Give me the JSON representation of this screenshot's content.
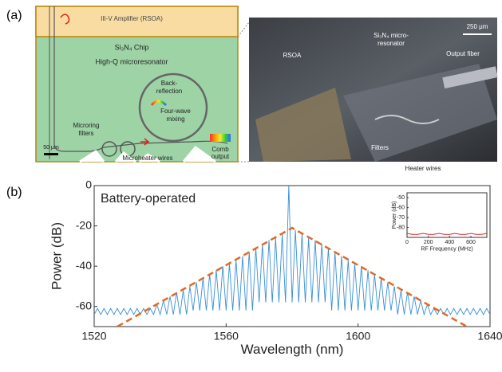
{
  "figure": {
    "panel_a": {
      "label": "(a)",
      "schematic": {
        "amplifier": "III-V Amplifier (RSOA)",
        "chip": "Si₃N₄ Chip",
        "resonator": "High-Q microresonator",
        "back_reflection": [
          "Back-",
          "reflection"
        ],
        "four_wave_mixing": [
          "Four-wave",
          "mixing"
        ],
        "microring_filters": [
          "Microring",
          "filters"
        ],
        "comb_output": [
          "Comb",
          "output"
        ],
        "scale_bar": "50 μm",
        "microheater": "Microheater wires"
      },
      "photo": {
        "rsoa": "RSOA",
        "microresonator": [
          "Si₃N₄ micro-",
          "resonator"
        ],
        "output_fiber": "Output fiber",
        "filters": "Filters",
        "heater_wires": "Heater wires",
        "scale_bar": "250 μm"
      }
    },
    "panel_b": {
      "label": "(b)"
    }
  },
  "chart_data": [
    {
      "type": "line",
      "x_label": "Wavelength (nm)",
      "y_label": "Power (dB)",
      "annotation": "Battery-operated",
      "xlim": [
        1520,
        1640
      ],
      "xticks": [
        1520,
        1560,
        1600,
        1640
      ],
      "ylim": [
        -70,
        0
      ],
      "yticks": [
        0,
        -20,
        -40,
        -60
      ],
      "series": [
        {
          "color": "#3a8fd6",
          "dashed": false,
          "x": [
            1520,
            1521,
            1522,
            1523,
            1524,
            1525,
            1526,
            1527,
            1528,
            1529,
            1530,
            1531,
            1532,
            1533,
            1534,
            1535,
            1536,
            1537,
            1538,
            1539,
            1540,
            1541,
            1542,
            1543,
            1544,
            1545,
            1546,
            1547,
            1548,
            1549,
            1550,
            1551,
            1552,
            1553,
            1554,
            1555,
            1556,
            1557,
            1558,
            1559,
            1560,
            1561,
            1562,
            1563,
            1564,
            1565,
            1566,
            1567,
            1568,
            1569,
            1570,
            1571,
            1572,
            1573,
            1574,
            1575,
            1576,
            1577,
            1578,
            1579,
            1580,
            1581,
            1582,
            1583,
            1584,
            1585,
            1586,
            1587,
            1588,
            1589,
            1590,
            1591,
            1592,
            1593,
            1594,
            1595,
            1596,
            1597,
            1598,
            1599,
            1600,
            1601,
            1602,
            1603,
            1604,
            1605,
            1606,
            1607,
            1608,
            1609,
            1610,
            1611,
            1612,
            1613,
            1614,
            1615,
            1616,
            1617,
            1618,
            1619,
            1620,
            1621,
            1622,
            1623,
            1624,
            1625,
            1626,
            1627,
            1628,
            1629,
            1630,
            1631,
            1632,
            1633,
            1634,
            1635,
            1636,
            1637,
            1638,
            1639,
            1640
          ],
          "values": [
            -64,
            -61,
            -64,
            -61,
            -64,
            -61,
            -64,
            -61,
            -64,
            -61,
            -64,
            -61,
            -64,
            -61,
            -64,
            -61,
            -64,
            -61,
            -64,
            -59,
            -64,
            -57,
            -64,
            -55,
            -64,
            -53,
            -64,
            -52,
            -64,
            -50,
            -62,
            -48,
            -62,
            -46,
            -62,
            -44,
            -62,
            -42,
            -62,
            -40,
            -62,
            -39,
            -62,
            -37,
            -62,
            -35,
            -62,
            -33,
            -62,
            -31,
            -58,
            -29,
            -58,
            -27,
            -58,
            -26,
            -58,
            -24,
            -58,
            0,
            -58,
            -22,
            -58,
            -24,
            -58,
            -26,
            -58,
            -27,
            -58,
            -29,
            -58,
            -31,
            -62,
            -33,
            -62,
            -35,
            -62,
            -37,
            -62,
            -39,
            -62,
            -40,
            -62,
            -42,
            -62,
            -44,
            -62,
            -46,
            -62,
            -48,
            -62,
            -50,
            -64,
            -52,
            -64,
            -53,
            -64,
            -55,
            -64,
            -57,
            -64,
            -59,
            -64,
            -61,
            -64,
            -61,
            -64,
            -61,
            -64,
            -61,
            -64,
            -61,
            -64,
            -61,
            -64,
            -61,
            -64,
            -61,
            -64,
            -61,
            -64
          ]
        },
        {
          "color": "#e06a28",
          "dashed": true,
          "x": [
            1527,
            1580,
            1633
          ],
          "values": [
            -70,
            -21,
            -70
          ]
        }
      ]
    },
    {
      "type": "line",
      "x_label": "RF Frequency (MHz)",
      "y_label": "Power (dB)",
      "xlim": [
        0,
        750
      ],
      "xticks": [
        0,
        200,
        400,
        600
      ],
      "ylim": [
        -90,
        -45
      ],
      "yticks": [
        -50,
        -60,
        -70,
        -80
      ],
      "series": [
        {
          "color": "#e02020",
          "dashed": false,
          "x": [
            0,
            50,
            100,
            150,
            200,
            250,
            300,
            350,
            400,
            450,
            500,
            550,
            600,
            650,
            700,
            750
          ],
          "values": [
            -86,
            -87,
            -87,
            -86,
            -87,
            -87,
            -86,
            -87,
            -87,
            -86,
            -87,
            -87,
            -86,
            -87,
            -87,
            -86
          ]
        }
      ]
    }
  ]
}
